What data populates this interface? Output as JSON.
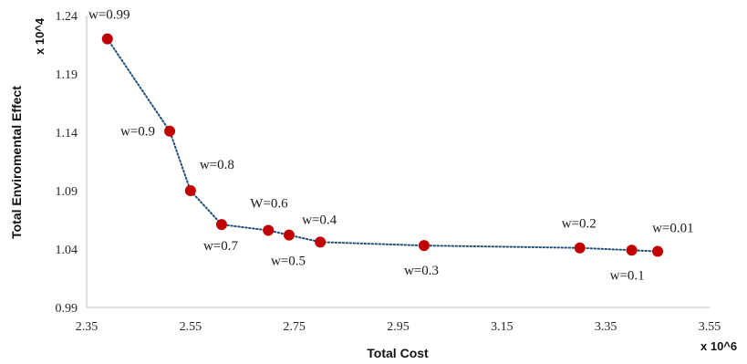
{
  "chart_data": {
    "type": "scatter",
    "title": "",
    "xlabel": "Total Cost",
    "ylabel": "Total Enviromental Effect",
    "x_scale_label": "x 10^6",
    "y_scale_label": "x 10^4",
    "xlim": [
      2.35,
      3.55
    ],
    "ylim": [
      0.99,
      1.24
    ],
    "x_ticks": [
      "2.35",
      "2.55",
      "2.75",
      "2.95",
      "3.15",
      "3.35",
      "3.55"
    ],
    "y_ticks": [
      "0.99",
      "1.04",
      "1.09",
      "1.14",
      "1.19",
      "1.24"
    ],
    "grid": false,
    "legend": "none",
    "marker_color": "#c00000",
    "line_color": "#1f4e79",
    "line_style": "dotted",
    "series": [
      {
        "points": [
          {
            "x": 2.39,
            "y": 1.22,
            "label": "w=0.99"
          },
          {
            "x": 2.51,
            "y": 1.141,
            "label": "w=0.9"
          },
          {
            "x": 2.55,
            "y": 1.09,
            "label": "w=0.8"
          },
          {
            "x": 2.61,
            "y": 1.061,
            "label": "w=0.7"
          },
          {
            "x": 2.7,
            "y": 1.056,
            "label": "W=0.6"
          },
          {
            "x": 2.74,
            "y": 1.052,
            "label": "w=0.5"
          },
          {
            "x": 2.8,
            "y": 1.046,
            "label": "w=0.4"
          },
          {
            "x": 3.0,
            "y": 1.043,
            "label": "w=0.3"
          },
          {
            "x": 3.3,
            "y": 1.041,
            "label": "w=0.2"
          },
          {
            "x": 3.4,
            "y": 1.039,
            "label": "w=0.1"
          },
          {
            "x": 3.45,
            "y": 1.038,
            "label": "w=0.01"
          }
        ]
      }
    ]
  }
}
